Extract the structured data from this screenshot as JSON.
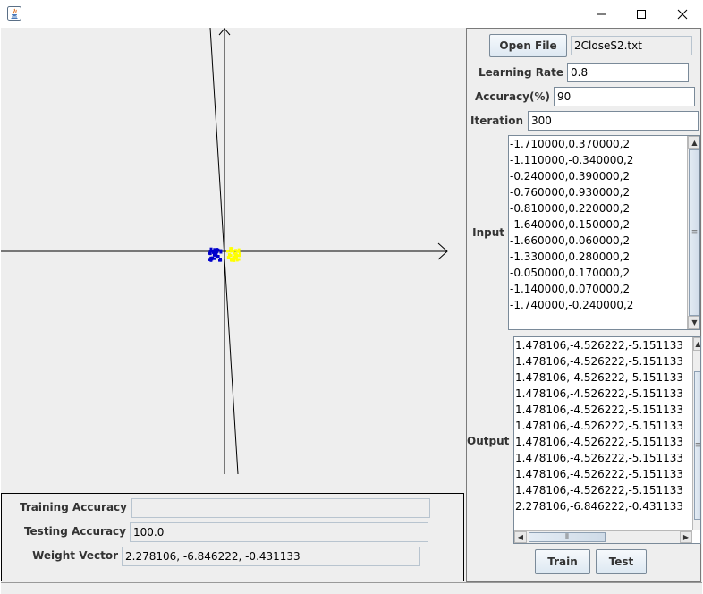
{
  "window": {
    "controls": {
      "minimize": "—",
      "maximize": "☐",
      "close": "✕"
    }
  },
  "plot": {
    "class_colors": {
      "class1": "#0000cc",
      "class2": "#ffff00"
    },
    "axis_color": "#000000"
  },
  "stats": {
    "training_accuracy_label": "Training Accuracy",
    "training_accuracy_value": "",
    "testing_accuracy_label": "Testing Accuracy",
    "testing_accuracy_value": "100.0",
    "weight_vector_label": "Weight Vector",
    "weight_vector_value": "2.278106, -6.846222, -0.431133"
  },
  "controls": {
    "open_file_label": "Open File",
    "file_name": "2CloseS2.txt",
    "learning_rate_label": "Learning Rate",
    "learning_rate_value": "0.8",
    "accuracy_label": "Accuracy(%)",
    "accuracy_value": "90",
    "iteration_label": "Iteration",
    "iteration_value": "300",
    "input_label": "Input",
    "output_label": "Output",
    "train_label": "Train",
    "test_label": "Test"
  },
  "input_rows": [
    "-1.710000,0.370000,2",
    "-1.110000,-0.340000,2",
    "-0.240000,0.390000,2",
    "-0.760000,0.930000,2",
    "-0.810000,0.220000,2",
    "-1.640000,0.150000,2",
    "-1.660000,0.060000,2",
    "-1.330000,0.280000,2",
    "-0.050000,0.170000,2",
    "-1.140000,0.070000,2",
    "-1.740000,-0.240000,2"
  ],
  "output_rows": [
    "1.478106,-4.526222,-5.151133",
    "1.478106,-4.526222,-5.151133",
    "1.478106,-4.526222,-5.151133",
    "1.478106,-4.526222,-5.151133",
    "1.478106,-4.526222,-5.151133",
    "1.478106,-4.526222,-5.151133",
    "1.478106,-4.526222,-5.151133",
    "1.478106,-4.526222,-5.151133",
    "1.478106,-4.526222,-5.151133",
    "1.478106,-4.526222,-5.151133",
    "2.278106,-6.846222,-0.431133"
  ]
}
